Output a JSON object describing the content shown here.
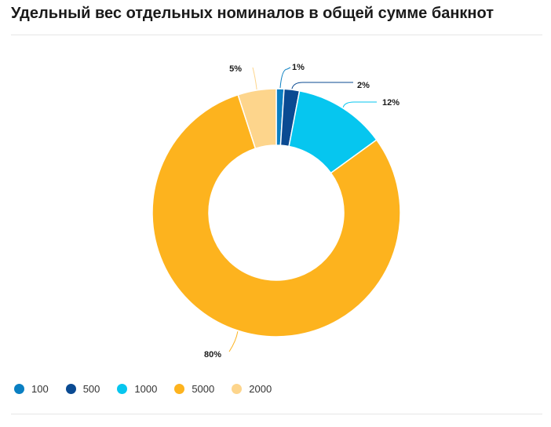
{
  "title": "Удельный вес отдельных номиналов в общей сумме банкнот",
  "chart_data": {
    "type": "pie",
    "donut": true,
    "legend_position": "bottom-left",
    "slices": [
      {
        "name": "100",
        "value": 1,
        "label": "1%",
        "color": "#0a7fc2"
      },
      {
        "name": "500",
        "value": 2,
        "label": "2%",
        "color": "#0a4a92"
      },
      {
        "name": "1000",
        "value": 12,
        "label": "12%",
        "color": "#06c6ef"
      },
      {
        "name": "5000",
        "value": 80,
        "label": "80%",
        "color": "#fdb31e"
      },
      {
        "name": "2000",
        "value": 5,
        "label": "5%",
        "color": "#fdd58c"
      }
    ]
  }
}
